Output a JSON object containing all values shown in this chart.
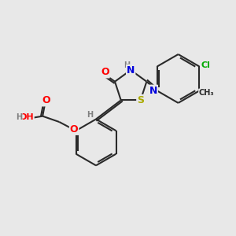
{
  "bg_color": "#e8e8e8",
  "bond_color": "#2a2a2a",
  "atom_colors": {
    "O": "#ff0000",
    "N": "#0000dd",
    "S": "#aaaa00",
    "Cl": "#00aa00",
    "H": "#808080",
    "C": "#2a2a2a"
  }
}
